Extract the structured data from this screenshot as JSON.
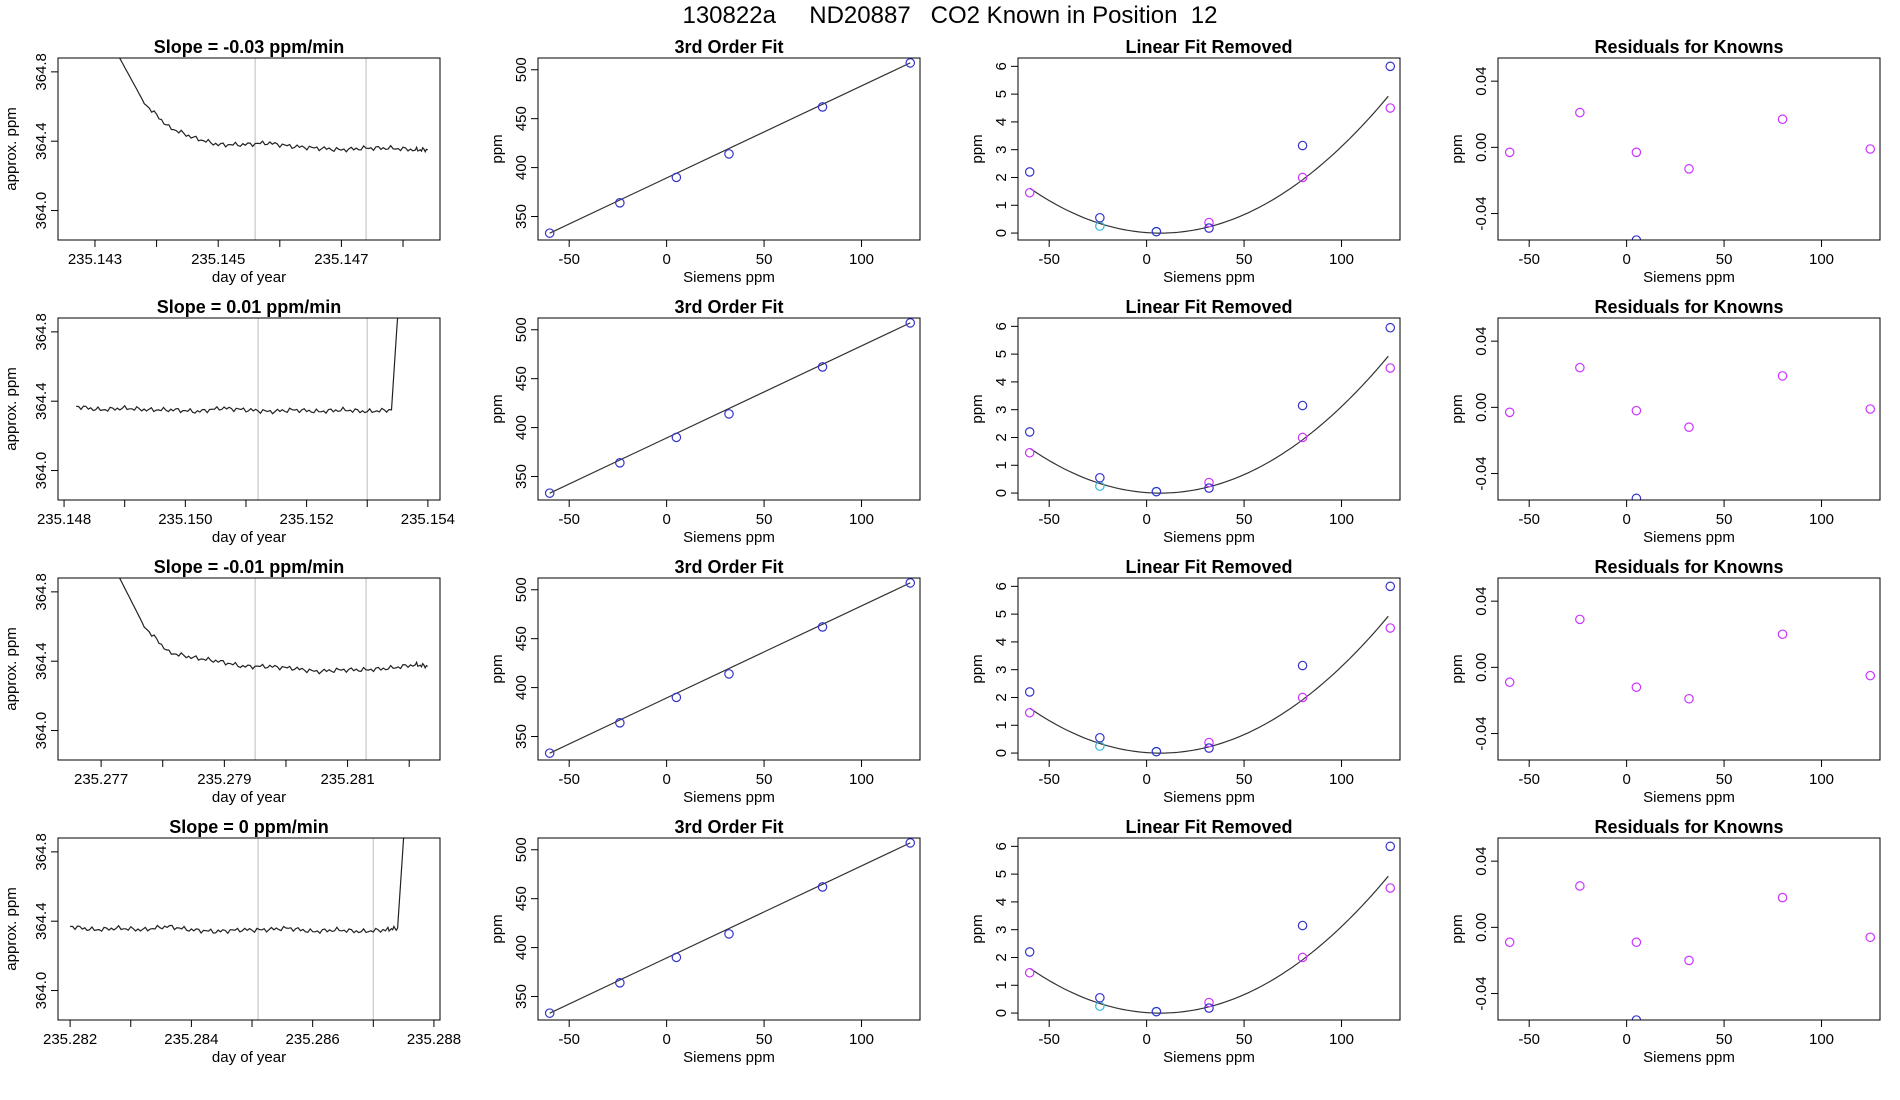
{
  "page": {
    "title": "130822a     ND20887   CO2 Known in Position  12"
  },
  "colors": {
    "axis": "#000000",
    "trace": "#222222",
    "marker_lines": "#cccccc",
    "known_points": "#3333cc",
    "offset_points": "#cc33ff",
    "cyan_points": "#33bbdd",
    "fit_line": "#333333"
  },
  "chart_data": [
    {
      "row": 1,
      "panel": "timeseries",
      "type": "line",
      "title": "Slope =  -0.03  ppm/min",
      "xlabel": "day of year",
      "ylabel": "approx. ppm",
      "xlim": [
        235.1424,
        235.1486
      ],
      "ylim": [
        363.83,
        364.88
      ],
      "xticks": [
        235.143,
        235.144,
        235.145,
        235.146,
        235.147,
        235.148
      ],
      "xticklabels": [
        "235.143",
        "",
        "235.145",
        "",
        "235.147",
        ""
      ],
      "yticks": [
        364.0,
        364.4,
        364.8
      ],
      "yticklabels": [
        "364.0",
        "364.4",
        "364.8"
      ],
      "vlines": [
        235.1456,
        235.1474
      ],
      "series": [
        {
          "x": [
            235.1434,
            235.1438,
            235.1442,
            235.1446,
            235.145,
            235.1454,
            235.1458,
            235.1462,
            235.1466,
            235.147,
            235.1474,
            235.1478,
            235.1482,
            235.1484
          ],
          "y": [
            364.88,
            364.62,
            364.48,
            364.42,
            364.38,
            364.38,
            364.39,
            364.37,
            364.36,
            364.35,
            364.36,
            364.36,
            364.35,
            364.35
          ]
        }
      ]
    },
    {
      "row": 1,
      "panel": "fit",
      "type": "scatter",
      "title": "3rd Order Fit",
      "xlabel": "Siemens ppm",
      "ylabel": "ppm",
      "xlim": [
        -66,
        130
      ],
      "ylim": [
        326,
        512
      ],
      "xticks": [
        -50,
        0,
        50,
        100
      ],
      "xticklabels": [
        "-50",
        "0",
        "50",
        "100"
      ],
      "yticks": [
        350,
        400,
        450,
        500
      ],
      "yticklabels": [
        "350",
        "400",
        "450",
        "500"
      ],
      "points": [
        {
          "x": [
            -60,
            -24,
            5,
            32,
            80,
            125
          ],
          "y": [
            333,
            364,
            390,
            414,
            462,
            507
          ]
        }
      ],
      "curve": {
        "x": [
          -60,
          125
        ],
        "y": [
          333,
          507
        ]
      }
    },
    {
      "row": 1,
      "panel": "linear_removed",
      "type": "scatter",
      "title": "Linear Fit Removed",
      "xlabel": "Siemens ppm",
      "ylabel": "ppm",
      "xlim": [
        -66,
        130
      ],
      "ylim": [
        -0.25,
        6.3
      ],
      "xticks": [
        -50,
        0,
        50,
        100
      ],
      "xticklabels": [
        "-50",
        "0",
        "50",
        "100"
      ],
      "yticks": [
        0,
        1,
        2,
        3,
        4,
        5,
        6
      ],
      "yticklabels": [
        "0",
        "1",
        "2",
        "3",
        "4",
        "5",
        "6"
      ],
      "points_known": {
        "x": [
          -60,
          -24,
          5,
          32,
          80,
          125
        ],
        "y": [
          2.2,
          0.55,
          0.05,
          0.18,
          3.15,
          6.0
        ]
      },
      "points_offset": {
        "x": [
          -60,
          32,
          80,
          125
        ],
        "y": [
          1.45,
          0.38,
          2.0,
          4.5
        ]
      },
      "points_cyan": {
        "x": [
          -24,
          5
        ],
        "y": [
          0.25,
          0.05
        ]
      },
      "curve_coeffs": [
        0.00036,
        -0.00145,
        0.0
      ]
    },
    {
      "row": 1,
      "panel": "residuals",
      "type": "scatter",
      "title": "Residuals for Knowns",
      "xlabel": "Siemens ppm",
      "ylabel": "ppm",
      "xlim": [
        -66,
        130
      ],
      "ylim": [
        -0.056,
        0.054
      ],
      "xticks": [
        -50,
        0,
        50,
        100
      ],
      "xticklabels": [
        "-50",
        "0",
        "50",
        "100"
      ],
      "yticks": [
        -0.04,
        0.0,
        0.04
      ],
      "yticklabels": [
        "-0.04",
        "0.00",
        "0.04"
      ],
      "points_offset": {
        "x": [
          -60,
          -24,
          5,
          32,
          80,
          125
        ],
        "y": [
          -0.003,
          0.021,
          -0.003,
          -0.013,
          0.017,
          -0.001
        ]
      },
      "points_known": {
        "x": [
          5
        ],
        "y": [
          -0.056
        ]
      }
    },
    {
      "row": 2,
      "panel": "timeseries",
      "type": "line",
      "title": "Slope =  0.01  ppm/min",
      "xlabel": "day of year",
      "ylabel": "approx. ppm",
      "xlim": [
        235.1479,
        235.1542
      ],
      "ylim": [
        363.83,
        364.88
      ],
      "xticks": [
        235.148,
        235.149,
        235.15,
        235.151,
        235.152,
        235.153,
        235.154
      ],
      "xticklabels": [
        "235.148",
        "",
        "235.150",
        "",
        "235.152",
        "",
        "235.154"
      ],
      "yticks": [
        364.0,
        364.4,
        364.8
      ],
      "yticklabels": [
        "364.0",
        "364.4",
        "364.8"
      ],
      "vlines": [
        235.1512,
        235.153
      ],
      "series": [
        {
          "x": [
            235.1482,
            235.1486,
            235.149,
            235.1494,
            235.1498,
            235.1502,
            235.1506,
            235.151,
            235.1514,
            235.1518,
            235.1522,
            235.1526,
            235.153,
            235.1534,
            235.1535
          ],
          "y": [
            364.37,
            364.35,
            364.36,
            364.35,
            364.35,
            364.34,
            364.36,
            364.35,
            364.34,
            364.35,
            364.34,
            364.35,
            364.34,
            364.35,
            364.88
          ]
        }
      ]
    },
    {
      "row": 2,
      "panel": "fit",
      "type": "scatter",
      "title": "3rd Order Fit",
      "xlabel": "Siemens ppm",
      "ylabel": "ppm",
      "xlim": [
        -66,
        130
      ],
      "ylim": [
        326,
        512
      ],
      "xticks": [
        -50,
        0,
        50,
        100
      ],
      "xticklabels": [
        "-50",
        "0",
        "50",
        "100"
      ],
      "yticks": [
        350,
        400,
        450,
        500
      ],
      "yticklabels": [
        "350",
        "400",
        "450",
        "500"
      ],
      "points": [
        {
          "x": [
            -60,
            -24,
            5,
            32,
            80,
            125
          ],
          "y": [
            333,
            364,
            390,
            414,
            462,
            507
          ]
        }
      ],
      "curve": {
        "x": [
          -60,
          125
        ],
        "y": [
          333,
          507
        ]
      }
    },
    {
      "row": 2,
      "panel": "linear_removed",
      "type": "scatter",
      "title": "Linear Fit Removed",
      "xlabel": "Siemens ppm",
      "ylabel": "ppm",
      "xlim": [
        -66,
        130
      ],
      "ylim": [
        -0.25,
        6.3
      ],
      "xticks": [
        -50,
        0,
        50,
        100
      ],
      "xticklabels": [
        "-50",
        "0",
        "50",
        "100"
      ],
      "yticks": [
        0,
        1,
        2,
        3,
        4,
        5,
        6
      ],
      "yticklabels": [
        "0",
        "1",
        "2",
        "3",
        "4",
        "5",
        "6"
      ],
      "points_known": {
        "x": [
          -60,
          -24,
          5,
          32,
          80,
          125
        ],
        "y": [
          2.2,
          0.55,
          0.05,
          0.18,
          3.15,
          5.95
        ]
      },
      "points_offset": {
        "x": [
          -60,
          32,
          80,
          125
        ],
        "y": [
          1.45,
          0.38,
          2.0,
          4.5
        ]
      },
      "points_cyan": {
        "x": [
          -24,
          5
        ],
        "y": [
          0.25,
          0.05
        ]
      },
      "curve_coeffs": [
        0.00036,
        -0.00145,
        0.0
      ]
    },
    {
      "row": 2,
      "panel": "residuals",
      "type": "scatter",
      "title": "Residuals for Knowns",
      "xlabel": "Siemens ppm",
      "ylabel": "ppm",
      "xlim": [
        -66,
        130
      ],
      "ylim": [
        -0.056,
        0.054
      ],
      "xticks": [
        -50,
        0,
        50,
        100
      ],
      "xticklabels": [
        "-50",
        "0",
        "50",
        "100"
      ],
      "yticks": [
        -0.04,
        0.0,
        0.04
      ],
      "yticklabels": [
        "-0.04",
        "0.00",
        "0.04"
      ],
      "points_offset": {
        "x": [
          -60,
          -24,
          5,
          32,
          80,
          125
        ],
        "y": [
          -0.003,
          0.024,
          -0.002,
          -0.012,
          0.019,
          -0.001
        ]
      },
      "points_known": {
        "x": [
          5
        ],
        "y": [
          -0.055
        ]
      }
    },
    {
      "row": 3,
      "panel": "timeseries",
      "type": "line",
      "title": "Slope =  -0.01  ppm/min",
      "xlabel": "day of year",
      "ylabel": "approx. ppm",
      "xlim": [
        235.2763,
        235.2825
      ],
      "ylim": [
        363.83,
        364.88
      ],
      "xticks": [
        235.277,
        235.278,
        235.279,
        235.28,
        235.281,
        235.282
      ],
      "xticklabels": [
        "235.277",
        "",
        "235.279",
        "",
        "235.281",
        ""
      ],
      "yticks": [
        364.0,
        364.4,
        364.8
      ],
      "yticklabels": [
        "364.0",
        "364.4",
        "364.8"
      ],
      "vlines": [
        235.2795,
        235.2813
      ],
      "series": [
        {
          "x": [
            235.2773,
            235.2777,
            235.2781,
            235.2785,
            235.2789,
            235.2793,
            235.2797,
            235.2801,
            235.2805,
            235.2809,
            235.2813,
            235.2817,
            235.2821,
            235.2823
          ],
          "y": [
            364.88,
            364.6,
            364.45,
            364.42,
            364.4,
            364.37,
            364.37,
            364.36,
            364.34,
            364.35,
            364.35,
            364.36,
            364.38,
            364.37
          ]
        }
      ]
    },
    {
      "row": 3,
      "panel": "fit",
      "type": "scatter",
      "title": "3rd Order Fit",
      "xlabel": "Siemens ppm",
      "ylabel": "ppm",
      "xlim": [
        -66,
        130
      ],
      "ylim": [
        326,
        512
      ],
      "xticks": [
        -50,
        0,
        50,
        100
      ],
      "xticklabels": [
        "-50",
        "0",
        "50",
        "100"
      ],
      "yticks": [
        350,
        400,
        450,
        500
      ],
      "yticklabels": [
        "350",
        "400",
        "450",
        "500"
      ],
      "points": [
        {
          "x": [
            -60,
            -24,
            5,
            32,
            80,
            125
          ],
          "y": [
            333,
            364,
            390,
            414,
            462,
            507
          ]
        }
      ],
      "curve": {
        "x": [
          -60,
          125
        ],
        "y": [
          333,
          507
        ]
      }
    },
    {
      "row": 3,
      "panel": "linear_removed",
      "type": "scatter",
      "title": "Linear Fit Removed",
      "xlabel": "Siemens ppm",
      "ylabel": "ppm",
      "xlim": [
        -66,
        130
      ],
      "ylim": [
        -0.25,
        6.3
      ],
      "xticks": [
        -50,
        0,
        50,
        100
      ],
      "xticklabels": [
        "-50",
        "0",
        "50",
        "100"
      ],
      "yticks": [
        0,
        1,
        2,
        3,
        4,
        5,
        6
      ],
      "yticklabels": [
        "0",
        "1",
        "2",
        "3",
        "4",
        "5",
        "6"
      ],
      "points_known": {
        "x": [
          -60,
          -24,
          5,
          32,
          80,
          125
        ],
        "y": [
          2.2,
          0.55,
          0.05,
          0.18,
          3.15,
          6.0
        ]
      },
      "points_offset": {
        "x": [
          -60,
          32,
          80,
          125
        ],
        "y": [
          1.45,
          0.38,
          2.0,
          4.5
        ]
      },
      "points_cyan": {
        "x": [
          -24,
          5
        ],
        "y": [
          0.25,
          0.05
        ]
      },
      "curve_coeffs": [
        0.00036,
        -0.00145,
        0.0
      ]
    },
    {
      "row": 3,
      "panel": "residuals",
      "type": "scatter",
      "title": "Residuals for Knowns",
      "xlabel": "Siemens ppm",
      "ylabel": "ppm",
      "xlim": [
        -66,
        130
      ],
      "ylim": [
        -0.056,
        0.054
      ],
      "xticks": [
        -50,
        0,
        50,
        100
      ],
      "xticklabels": [
        "-50",
        "0",
        "50",
        "100"
      ],
      "yticks": [
        -0.04,
        0.0,
        0.04
      ],
      "yticklabels": [
        "-0.04",
        "0.00",
        "0.04"
      ],
      "points_offset": {
        "x": [
          -60,
          -24,
          5,
          32,
          80,
          125
        ],
        "y": [
          -0.009,
          0.029,
          -0.012,
          -0.019,
          0.02,
          -0.005
        ]
      },
      "points_known": {
        "x": [],
        "y": []
      }
    },
    {
      "row": 4,
      "panel": "timeseries",
      "type": "line",
      "title": "Slope =  0  ppm/min",
      "xlabel": "day of year",
      "ylabel": "approx. ppm",
      "xlim": [
        235.2818,
        235.2881
      ],
      "ylim": [
        363.83,
        364.88
      ],
      "xticks": [
        235.282,
        235.283,
        235.284,
        235.285,
        235.286,
        235.287,
        235.288
      ],
      "xticklabels": [
        "235.282",
        "",
        "235.284",
        "",
        "235.286",
        "",
        "235.288"
      ],
      "yticks": [
        364.0,
        364.4,
        364.8
      ],
      "yticklabels": [
        "364.0",
        "364.4",
        "364.8"
      ],
      "vlines": [
        235.2851,
        235.287
      ],
      "series": [
        {
          "x": [
            235.282,
            235.2824,
            235.2828,
            235.2832,
            235.2836,
            235.284,
            235.2844,
            235.2848,
            235.2852,
            235.2856,
            235.286,
            235.2864,
            235.2868,
            235.2872,
            235.2874,
            235.2875
          ],
          "y": [
            364.37,
            364.35,
            364.36,
            364.35,
            364.37,
            364.35,
            364.34,
            364.35,
            364.35,
            364.36,
            364.34,
            364.35,
            364.34,
            364.35,
            364.36,
            364.88
          ]
        }
      ]
    },
    {
      "row": 4,
      "panel": "fit",
      "type": "scatter",
      "title": "3rd Order Fit",
      "xlabel": "Siemens ppm",
      "ylabel": "ppm",
      "xlim": [
        -66,
        130
      ],
      "ylim": [
        326,
        512
      ],
      "xticks": [
        -50,
        0,
        50,
        100
      ],
      "xticklabels": [
        "-50",
        "0",
        "50",
        "100"
      ],
      "yticks": [
        350,
        400,
        450,
        500
      ],
      "yticklabels": [
        "350",
        "400",
        "450",
        "500"
      ],
      "points": [
        {
          "x": [
            -60,
            -24,
            5,
            32,
            80,
            125
          ],
          "y": [
            333,
            364,
            390,
            414,
            462,
            507
          ]
        }
      ],
      "curve": {
        "x": [
          -60,
          125
        ],
        "y": [
          333,
          507
        ]
      }
    },
    {
      "row": 4,
      "panel": "linear_removed",
      "type": "scatter",
      "title": "Linear Fit Removed",
      "xlabel": "Siemens ppm",
      "ylabel": "ppm",
      "xlim": [
        -66,
        130
      ],
      "ylim": [
        -0.25,
        6.3
      ],
      "xticks": [
        -50,
        0,
        50,
        100
      ],
      "xticklabels": [
        "-50",
        "0",
        "50",
        "100"
      ],
      "yticks": [
        0,
        1,
        2,
        3,
        4,
        5,
        6
      ],
      "yticklabels": [
        "0",
        "1",
        "2",
        "3",
        "4",
        "5",
        "6"
      ],
      "points_known": {
        "x": [
          -60,
          -24,
          5,
          32,
          80,
          125
        ],
        "y": [
          2.2,
          0.55,
          0.05,
          0.18,
          3.15,
          6.0
        ]
      },
      "points_offset": {
        "x": [
          -60,
          32,
          80,
          125
        ],
        "y": [
          1.45,
          0.38,
          2.0,
          4.5
        ]
      },
      "points_cyan": {
        "x": [
          -24,
          5
        ],
        "y": [
          0.25,
          0.05
        ]
      },
      "curve_coeffs": [
        0.00036,
        -0.00145,
        0.0
      ]
    },
    {
      "row": 4,
      "panel": "residuals",
      "type": "scatter",
      "title": "Residuals for Knowns",
      "xlabel": "Siemens ppm",
      "ylabel": "ppm",
      "xlim": [
        -66,
        130
      ],
      "ylim": [
        -0.056,
        0.054
      ],
      "xticks": [
        -50,
        0,
        50,
        100
      ],
      "xticklabels": [
        "-50",
        "0",
        "50",
        "100"
      ],
      "yticks": [
        -0.04,
        0.0,
        0.04
      ],
      "yticklabels": [
        "-0.04",
        "0.00",
        "0.04"
      ],
      "points_offset": {
        "x": [
          -60,
          -24,
          5,
          32,
          80,
          125
        ],
        "y": [
          -0.009,
          0.025,
          -0.009,
          -0.02,
          0.018,
          -0.006
        ]
      },
      "points_known": {
        "x": [
          5
        ],
        "y": [
          -0.056
        ]
      }
    }
  ]
}
